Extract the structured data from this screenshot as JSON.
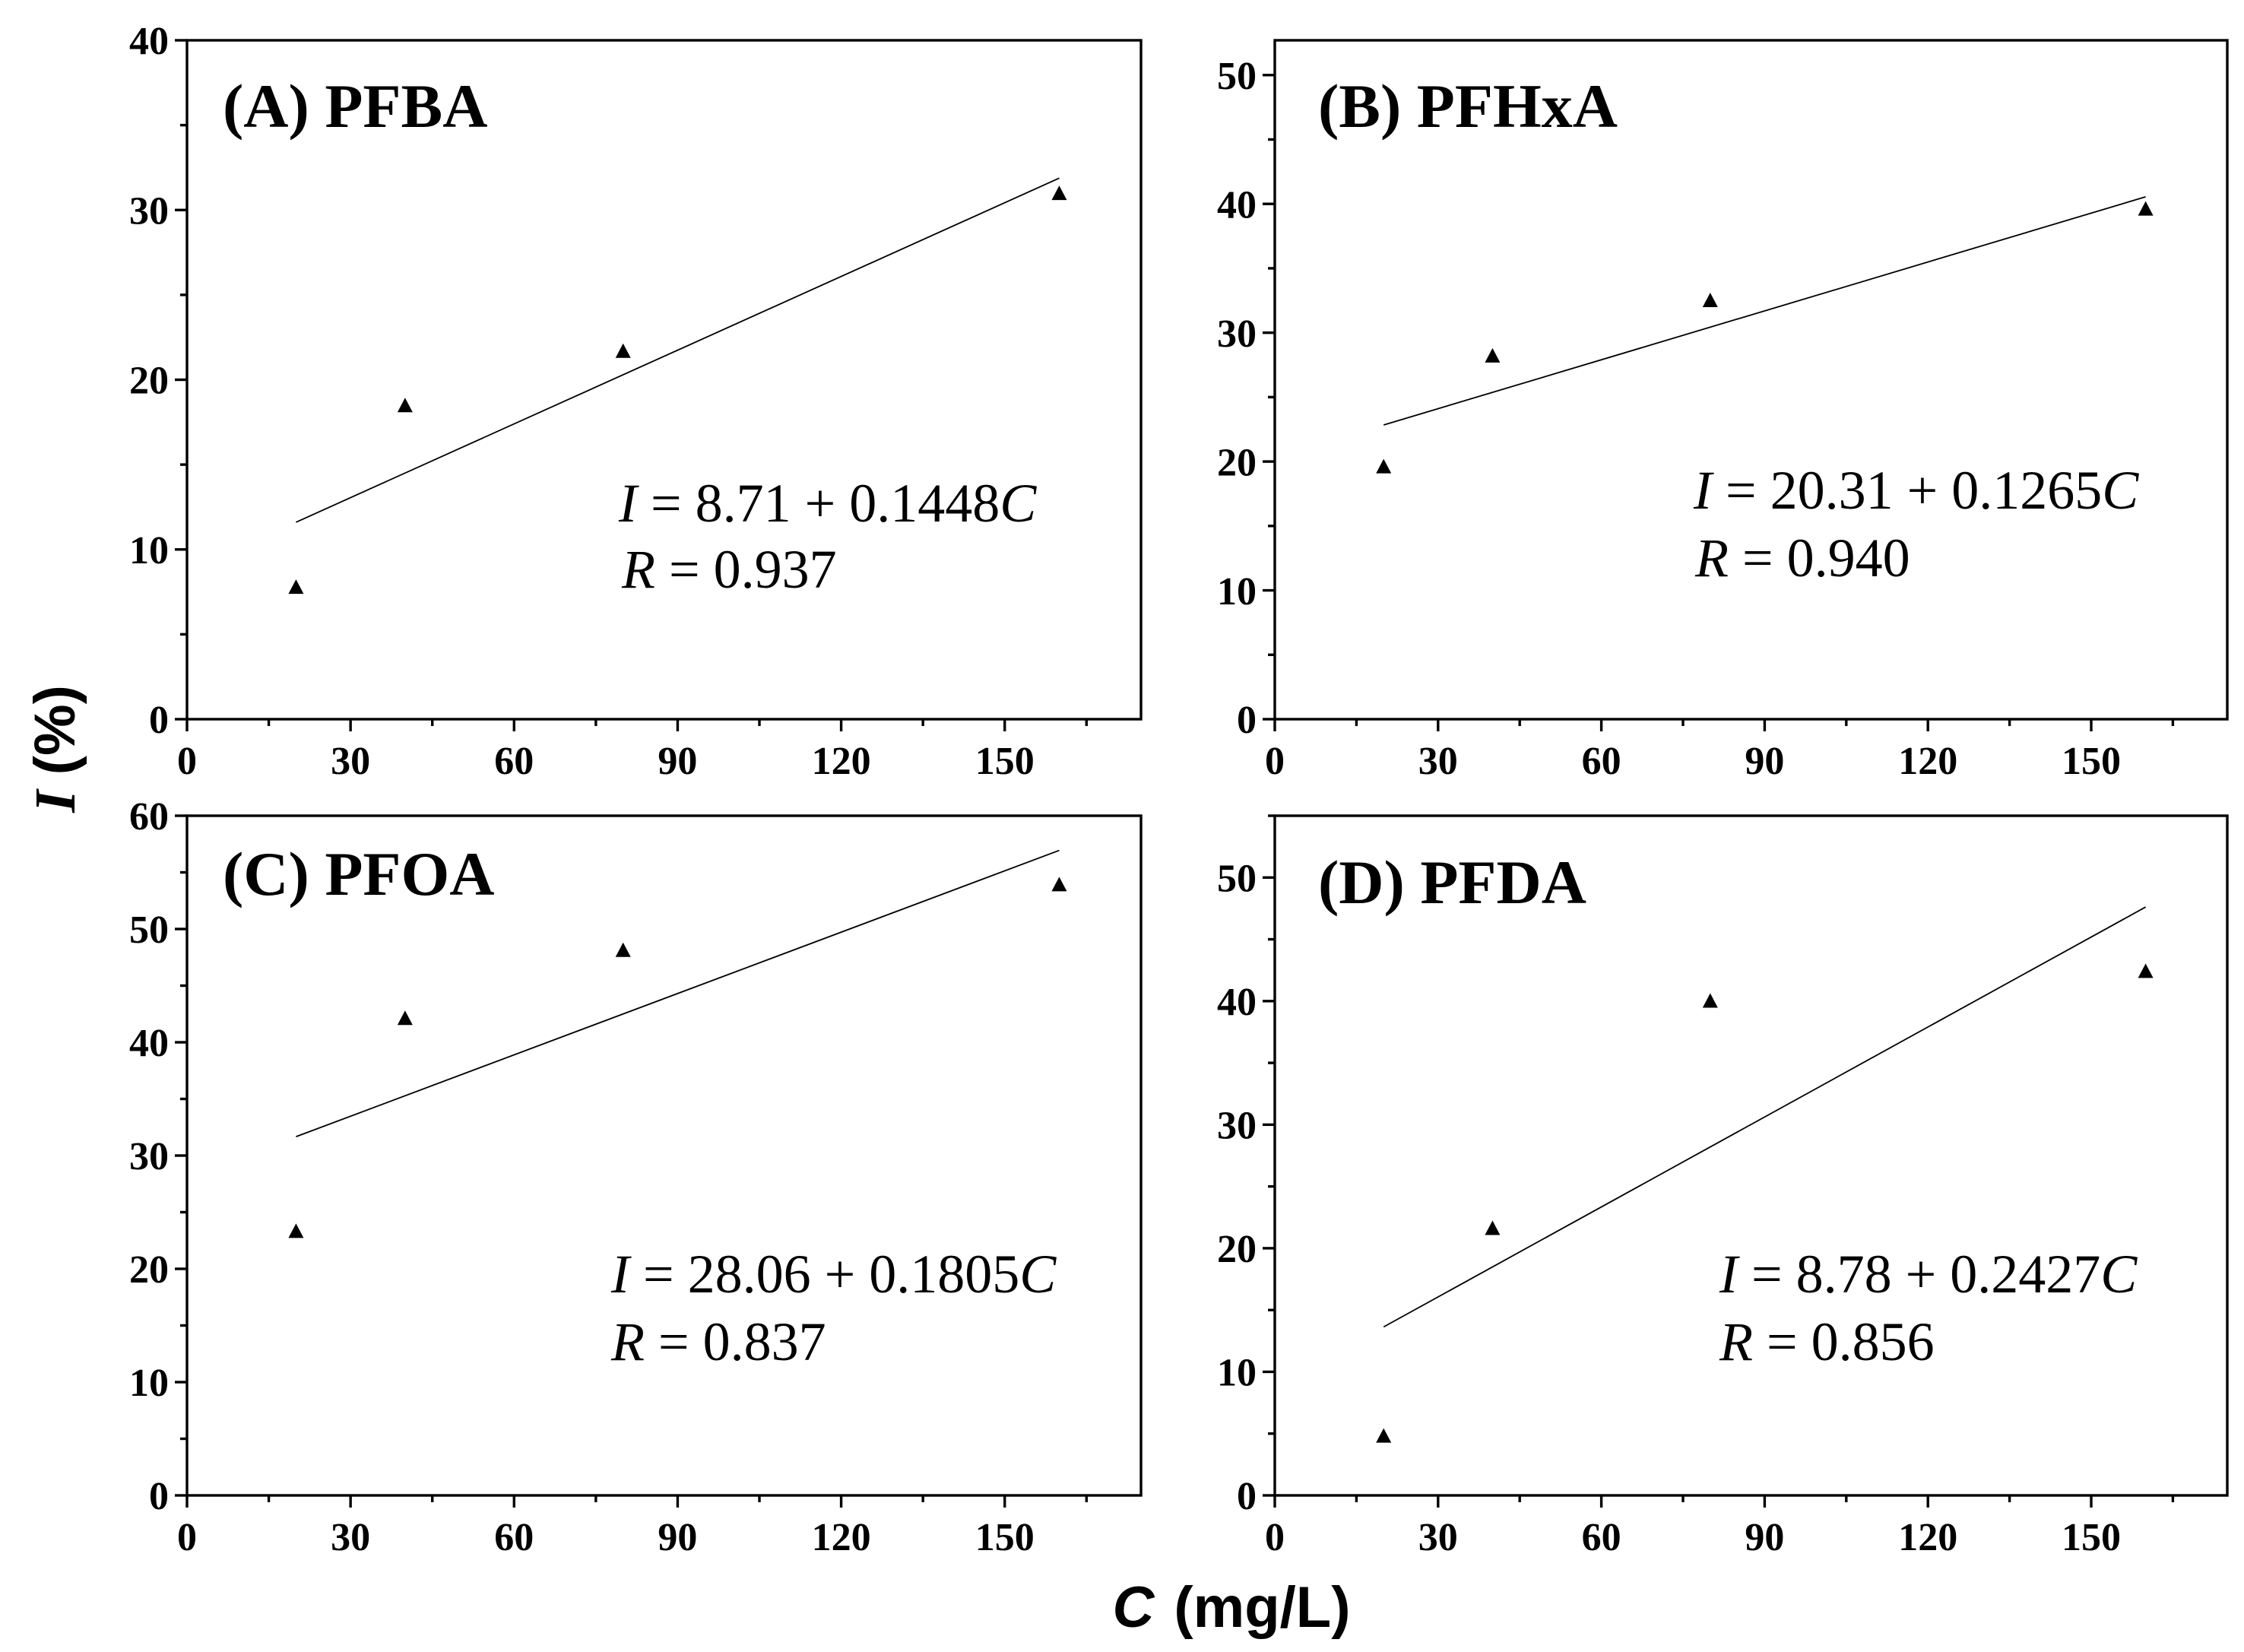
{
  "figure": {
    "ylabel_var": "I",
    "ylabel_unit": "(%)",
    "xlabel_var": "C",
    "xlabel_unit": "(mg/L)"
  },
  "chart_data": [
    {
      "type": "scatter",
      "title": "(A) PFBA",
      "x": [
        20,
        40,
        80,
        160
      ],
      "y": [
        7.7,
        18.4,
        21.6,
        30.9
      ],
      "xlim": [
        0,
        175
      ],
      "ylim": [
        0,
        40
      ],
      "xticks": [
        0,
        30,
        60,
        90,
        120,
        150
      ],
      "yticks": [
        0,
        10,
        20,
        30,
        40
      ],
      "xminor": 15,
      "yminor": 5,
      "color": "#000000",
      "fit": {
        "intercept": 8.71,
        "slope": 0.1448,
        "x_range": [
          20,
          160
        ]
      },
      "equation": {
        "lhs": "I",
        "body": " = 8.71 + 0.1448",
        "var": "C"
      },
      "r": {
        "var": "R",
        "body": " = 0.937"
      }
    },
    {
      "type": "scatter",
      "title": "(B) PFHxA",
      "x": [
        20,
        40,
        80,
        160
      ],
      "y": [
        19.5,
        28.1,
        32.4,
        39.5
      ],
      "xlim": [
        0,
        175
      ],
      "ylim": [
        0,
        52.7
      ],
      "xticks": [
        0,
        30,
        60,
        90,
        120,
        150
      ],
      "yticks": [
        0,
        10,
        20,
        30,
        40,
        50
      ],
      "xminor": 15,
      "yminor": 5,
      "color": "#000000",
      "fit": {
        "intercept": 20.31,
        "slope": 0.1265,
        "x_range": [
          20,
          160
        ]
      },
      "equation": {
        "lhs": "I",
        "body": " = 20.31 + 0.1265",
        "var": "C"
      },
      "r": {
        "var": "R",
        "body": " = 0.940"
      }
    },
    {
      "type": "scatter",
      "title": "(C) PFOA",
      "x": [
        20,
        40,
        80,
        160
      ],
      "y": [
        23.2,
        42.0,
        48.0,
        53.8
      ],
      "xlim": [
        0,
        175
      ],
      "ylim": [
        0,
        60
      ],
      "xticks": [
        0,
        30,
        60,
        90,
        120,
        150
      ],
      "yticks": [
        0,
        10,
        20,
        30,
        40,
        50,
        60
      ],
      "xminor": 15,
      "yminor": 5,
      "color": "#000000",
      "fit": {
        "intercept": 28.06,
        "slope": 0.1805,
        "x_range": [
          20,
          160
        ]
      },
      "equation": {
        "lhs": "I",
        "body": " = 28.06 + 0.1805",
        "var": "C"
      },
      "r": {
        "var": "R",
        "body": " = 0.837"
      }
    },
    {
      "type": "scatter",
      "title": "(D) PFDA",
      "x": [
        20,
        40,
        80,
        160
      ],
      "y": [
        4.7,
        21.5,
        39.9,
        42.3
      ],
      "xlim": [
        0,
        175
      ],
      "ylim": [
        0,
        55
      ],
      "xticks": [
        0,
        30,
        60,
        90,
        120,
        150
      ],
      "yticks": [
        0,
        10,
        20,
        30,
        40,
        50
      ],
      "xminor": 15,
      "yminor": 5,
      "color": "#000000",
      "fit": {
        "intercept": 8.78,
        "slope": 0.2427,
        "x_range": [
          20,
          160
        ]
      },
      "equation": {
        "lhs": "I",
        "body": " = 8.78 + 0.2427",
        "var": "C"
      },
      "r": {
        "var": "R",
        "body": " = 0.856"
      }
    }
  ]
}
